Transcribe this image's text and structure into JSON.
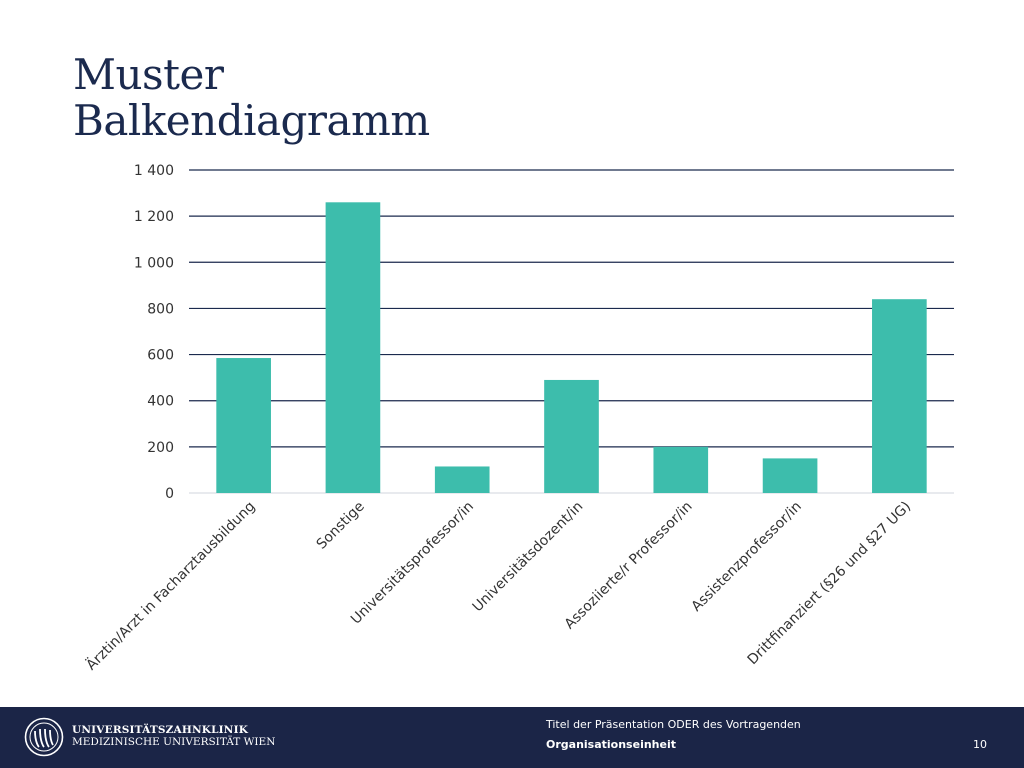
{
  "title": {
    "line1": "Muster",
    "line2": "Balkendiagramm"
  },
  "chart_data": {
    "type": "bar",
    "title": "",
    "xlabel": "",
    "ylabel": "",
    "categories": [
      "Ärztin/Arzt in Facharztausbildung",
      "Sonstige",
      "Universitätsprofessor/in",
      "Universitätsdozent/in",
      "Assoziierte/r Professor/in",
      "Assistenzprofessor/in",
      "Drittfinanziert (§26 und §27 UG)"
    ],
    "values": [
      585,
      1260,
      115,
      490,
      200,
      150,
      840
    ],
    "ylim": [
      0,
      1400
    ],
    "yticks": [
      0,
      200,
      400,
      600,
      800,
      1000,
      1200,
      1400
    ],
    "ytick_labels": [
      "0",
      "200",
      "400",
      "600",
      "800",
      "1 000",
      "1 200",
      "1 400"
    ],
    "grid": true,
    "bar_color": "#3dbdac",
    "grid_color": "#1b2a4e"
  },
  "footer": {
    "university_line1": "UNIVERSITÄTSZAHNKLINIK",
    "university_line2": "MEDIZINISCHE UNIVERSITÄT WIEN",
    "presentation_title": "Titel der Präsentation ODER des Vortragenden",
    "organisation_unit": "Organisationseinheit",
    "page_number": "10",
    "background_color": "#1b2547",
    "logo_icon": "university-seal-icon"
  }
}
